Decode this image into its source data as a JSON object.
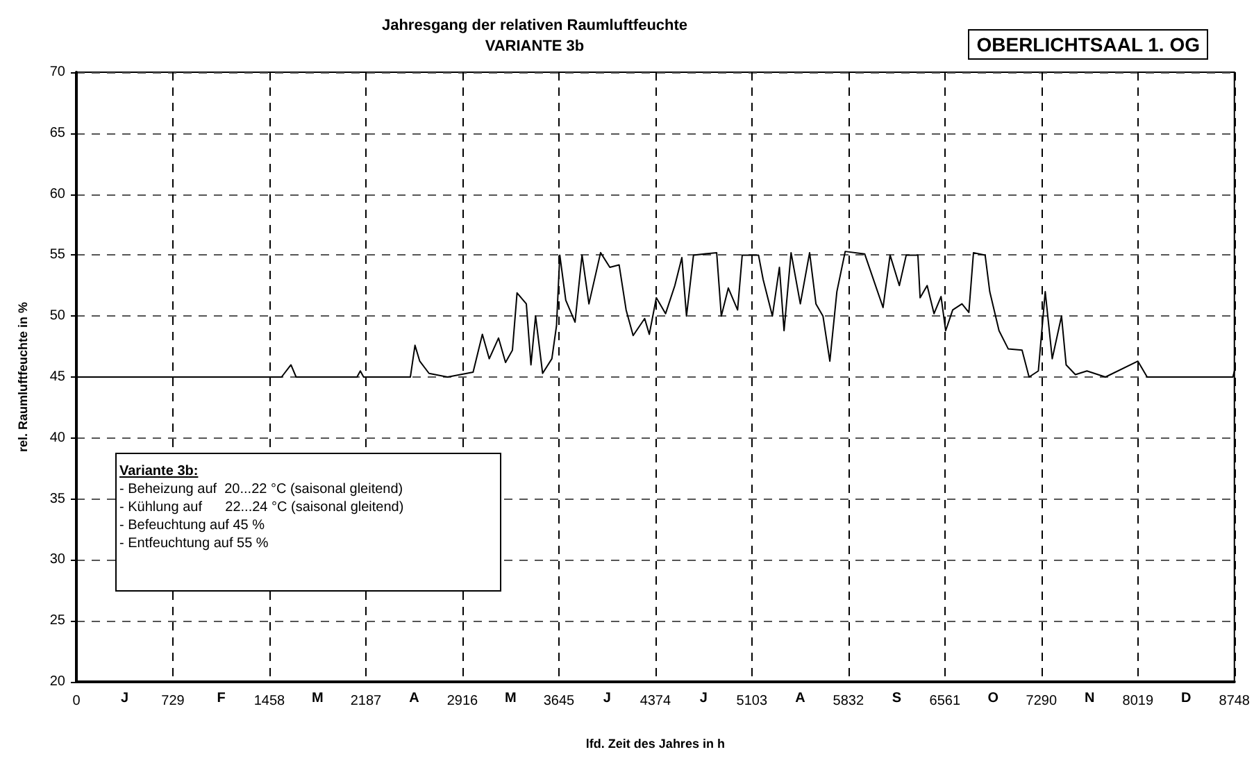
{
  "chart_data": {
    "type": "line",
    "title": "Jahresgang der relativen Raumluftfeuchte",
    "subtitle": "VARIANTE 3b",
    "xlabel": "lfd. Zeit des Jahres in h",
    "ylabel": "rel. Raumluftfeuchte in %",
    "annotations": [
      "OBERLICHTSAAL 1. OG",
      "Variante 3b:",
      "- Beheizung auf  20...22 °C (saisonal gleitend)",
      "- Kühlung auf      22...24 °C (saisonal gleitend)",
      "- Befeuchtung auf 45 %",
      "- Entfeuchtung auf 55 %"
    ],
    "series": [
      {
        "color": "#000000",
        "x": [
          0,
          1550,
          1621,
          1660,
          1700,
          2120,
          2145,
          2170,
          2523,
          2558,
          2594,
          2664,
          2804,
          2997,
          3067,
          3119,
          3189,
          3242,
          3294,
          3329,
          3399,
          3434,
          3469,
          3522,
          3592,
          3627,
          3652,
          3697,
          3767,
          3820,
          3872,
          3960,
          4030,
          4100,
          4153,
          4206,
          4293,
          4328,
          4381,
          4451,
          4521,
          4574,
          4609,
          4662,
          4837,
          4872,
          4925,
          4995,
          5030,
          5153,
          5188,
          5258,
          5311,
          5346,
          5399,
          5469,
          5539,
          5587,
          5640,
          5692,
          5745,
          5808,
          5955,
          6094,
          6147,
          6217,
          6269,
          6357,
          6374,
          6427,
          6479,
          6532,
          6567,
          6620,
          6690,
          6742,
          6777,
          6865,
          6900,
          6970,
          7040,
          7144,
          7197,
          7267,
          7319,
          7372,
          7442,
          7477,
          7547,
          7634,
          7774,
          8019,
          8089,
          8194,
          8737,
          8748
        ],
        "values": [
          45.0,
          45.0,
          46.0,
          45.0,
          45.0,
          45.0,
          45.5,
          45.0,
          45.0,
          47.6,
          46.3,
          45.3,
          45.0,
          45.4,
          48.5,
          46.5,
          48.2,
          46.2,
          47.2,
          51.9,
          51.0,
          46.0,
          50.0,
          45.3,
          46.5,
          49.2,
          55.0,
          51.3,
          49.5,
          55.0,
          51.0,
          55.2,
          54.0,
          54.2,
          50.5,
          48.4,
          49.8,
          48.5,
          51.5,
          50.2,
          52.5,
          54.8,
          50.0,
          55.0,
          55.2,
          50.0,
          52.3,
          50.5,
          55.0,
          55.0,
          53.0,
          50.0,
          54.0,
          48.8,
          55.2,
          51.0,
          55.2,
          51.0,
          50.0,
          46.3,
          52.0,
          55.3,
          55.1,
          50.7,
          55.0,
          52.5,
          55.0,
          55.0,
          51.5,
          52.5,
          50.2,
          51.6,
          48.8,
          50.5,
          51.0,
          50.3,
          55.2,
          55.0,
          52.0,
          48.8,
          47.3,
          47.2,
          45.0,
          45.5,
          52.0,
          46.5,
          50.0,
          46.0,
          45.2,
          45.5,
          45.0,
          46.3,
          45.0,
          45.0,
          45.0,
          45.5
        ]
      }
    ],
    "xlim": [
      0,
      8748
    ],
    "xticks": [
      0,
      {
        "value": 364.5,
        "label": "J"
      },
      729,
      {
        "value": 1093.5,
        "label": "F"
      },
      1458,
      {
        "value": 1822.5,
        "label": "M"
      },
      2187,
      {
        "value": 2551.5,
        "label": "A"
      },
      2916,
      {
        "value": 3280.5,
        "label": "M"
      },
      3645,
      {
        "value": 4009.5,
        "label": "J"
      },
      4374,
      {
        "value": 4738.5,
        "label": "J"
      },
      5103,
      {
        "value": 5467.5,
        "label": "A"
      },
      5832,
      {
        "value": 6196.5,
        "label": "S"
      },
      6561,
      {
        "value": 6925.5,
        "label": "O"
      },
      7290,
      {
        "value": 7654.5,
        "label": "N"
      },
      8019,
      {
        "value": 8383.5,
        "label": "D"
      },
      8748
    ],
    "ylim": [
      20,
      70
    ],
    "yticks": [
      20,
      25,
      30,
      35,
      40,
      45,
      50,
      55,
      60,
      65,
      70
    ],
    "grid": true,
    "marker": "none",
    "line_style": "solid"
  }
}
